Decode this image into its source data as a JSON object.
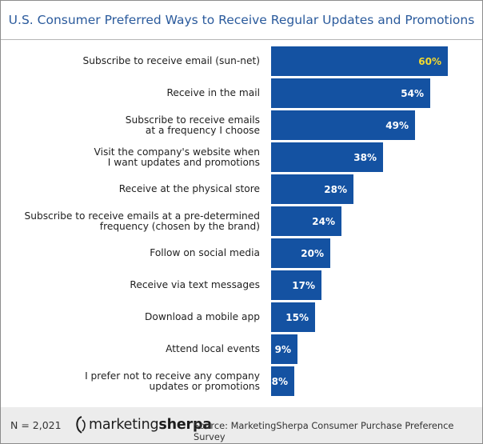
{
  "chart_data": {
    "type": "bar",
    "orientation": "horizontal",
    "title": "U.S. Consumer Preferred Ways to Receive Regular Updates and Promotions",
    "categories": [
      "Subscribe to receive email (sun-net)",
      "Receive in the mail",
      "Subscribe to receive emails\nat a frequency I choose",
      "Visit the company's website when\nI want updates and promotions",
      "Receive at the physical store",
      "Subscribe to receive emails at a pre-determined\nfrequency (chosen by the brand)",
      "Follow on social media",
      "Receive via text messages",
      "Download a mobile app",
      "Attend local events",
      "I prefer not to receive any company\nupdates or promotions"
    ],
    "values": [
      60,
      54,
      49,
      38,
      28,
      24,
      20,
      17,
      15,
      9,
      8
    ],
    "value_labels": [
      "60%",
      "54%",
      "49%",
      "38%",
      "28%",
      "24%",
      "20%",
      "17%",
      "15%",
      "9%",
      "8%"
    ],
    "highlight_index": 0,
    "xlim": [
      0,
      60
    ],
    "grid": false,
    "legend": "none",
    "colors": {
      "bar": "#1452a2",
      "label": "#ffffff",
      "highlight_label": "#f5da2e",
      "title": "#2a5a9c"
    }
  },
  "footer": {
    "sample_size": "N = 2,021",
    "logo_light": "marketing",
    "logo_bold": "sherpa",
    "source": "Source: MarketingSherpa Consumer Purchase Preference Survey"
  }
}
